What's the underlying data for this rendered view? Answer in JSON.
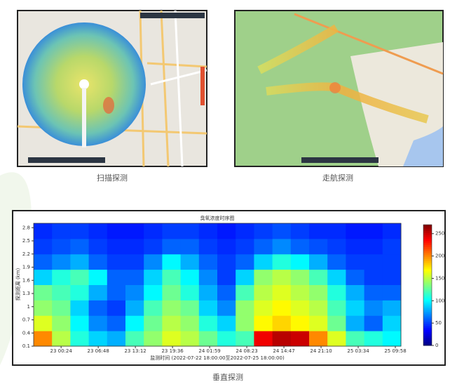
{
  "captions": {
    "scan": "扫描探测",
    "cruise": "走航探测",
    "vertical": "垂直探测"
  },
  "chart_data": {
    "type": "heatmap",
    "title": "臭氧浓度时序图",
    "y_label": "探测距离 (km)",
    "x_label": "监测时间 (2022-07-22 18:00:00至2022-07-25 18:00:00)",
    "categories": [
      "23 00:24",
      "23 06:48",
      "23 13:12",
      "23 19:36",
      "24 01:59",
      "24 08:23",
      "24 14:47",
      "24 21:10",
      "25 03:34",
      "25 09:58"
    ],
    "ylim": [
      0.1,
      2.9
    ],
    "yticks": [
      0.1,
      0.4,
      0.7,
      1.0,
      1.3,
      1.6,
      1.9,
      2.2,
      2.5,
      2.8
    ],
    "zlim": [
      0,
      270
    ],
    "zticks": [
      0,
      50,
      100,
      150,
      200,
      250
    ],
    "z": [
      [
        200,
        150,
        110,
        90,
        80,
        120,
        140,
        160,
        150,
        130,
        110,
        120,
        240,
        255,
        250,
        200,
        160,
        120,
        110,
        100
      ],
      [
        160,
        140,
        100,
        70,
        60,
        100,
        130,
        150,
        140,
        110,
        90,
        140,
        170,
        180,
        170,
        160,
        130,
        80,
        60,
        90
      ],
      [
        140,
        130,
        90,
        60,
        50,
        80,
        120,
        140,
        130,
        90,
        70,
        140,
        160,
        170,
        160,
        150,
        120,
        90,
        70,
        80
      ],
      [
        130,
        120,
        110,
        80,
        60,
        70,
        100,
        130,
        110,
        80,
        60,
        120,
        150,
        160,
        150,
        140,
        110,
        80,
        60,
        60
      ],
      [
        90,
        110,
        120,
        100,
        60,
        60,
        90,
        120,
        100,
        70,
        50,
        90,
        140,
        150,
        140,
        120,
        90,
        60,
        50,
        50
      ],
      [
        60,
        70,
        80,
        60,
        50,
        50,
        70,
        100,
        80,
        60,
        50,
        60,
        90,
        110,
        100,
        80,
        60,
        50,
        50,
        50
      ],
      [
        50,
        55,
        60,
        50,
        45,
        45,
        50,
        60,
        60,
        50,
        45,
        50,
        60,
        70,
        60,
        55,
        50,
        45,
        45,
        50
      ],
      [
        45,
        50,
        50,
        45,
        40,
        40,
        45,
        50,
        50,
        45,
        40,
        45,
        50,
        55,
        50,
        45,
        45,
        40,
        40,
        45
      ]
    ]
  }
}
